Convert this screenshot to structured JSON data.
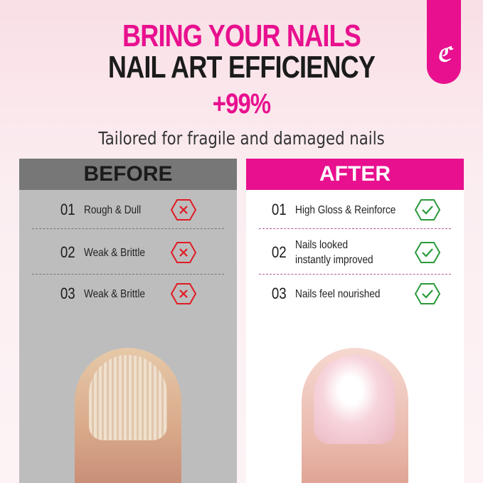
{
  "header": {
    "line1": "BRING YOUR NAILS",
    "line2": "NAIL ART EFFICIENCY",
    "line3": "+99%",
    "subtitle": "Tailored for fragile and damaged nails",
    "logo_text": "CC"
  },
  "before": {
    "title": "BEFORE",
    "items": [
      {
        "num": "01",
        "text": "Rough & Dull"
      },
      {
        "num": "02",
        "text": "Weak & Brittle"
      },
      {
        "num": "03",
        "text": "Weak & Brittle"
      }
    ],
    "icon": "x-hexagon-icon",
    "icon_color": "#e01b24"
  },
  "after": {
    "title": "AFTER",
    "items": [
      {
        "num": "01",
        "text": "High Gloss & Reinforce"
      },
      {
        "num": "02",
        "text": "Nails looked instantly improved"
      },
      {
        "num": "03",
        "text": "Nails feel nourished"
      }
    ],
    "icon": "check-hexagon-icon",
    "icon_color": "#2a9a3a"
  },
  "colors": {
    "brand": "#e8108f",
    "before_header": "#777777",
    "before_bg": "#bdbdbd"
  }
}
